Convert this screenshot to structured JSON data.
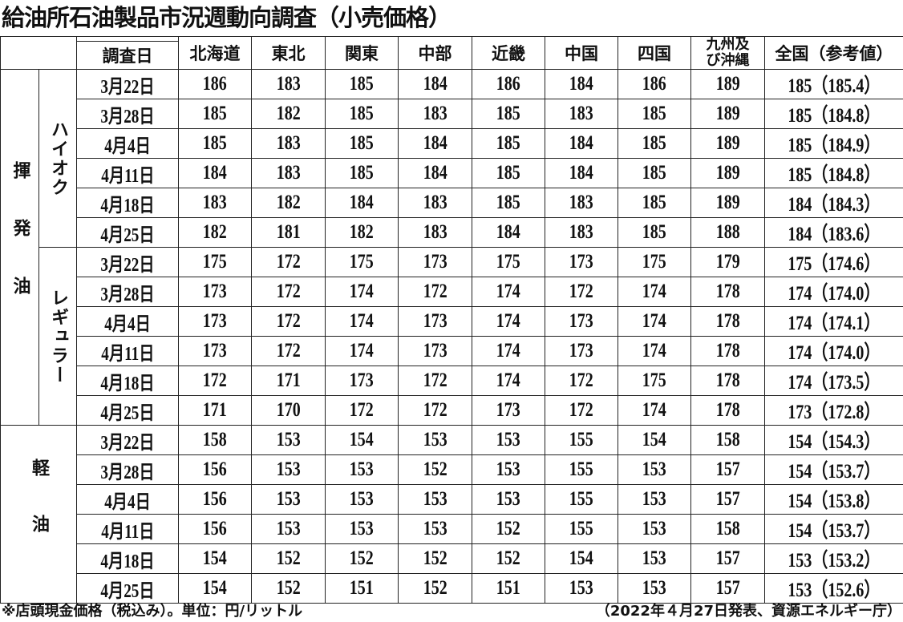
{
  "title": "給油所石油製品市況週動向調査（小売価格）",
  "header": {
    "date_label": "調査日",
    "regions": [
      "北海道",
      "東北",
      "関東",
      "中部",
      "近畿",
      "中国",
      "四国",
      "九州及び沖縄",
      "全国（参考値）"
    ]
  },
  "groups": [
    {
      "label": "揮発油",
      "subgroups": [
        {
          "label": "ハイオク",
          "rows": [
            {
              "date": "3月22日",
              "values": [
                "186",
                "183",
                "185",
                "184",
                "186",
                "184",
                "186",
                "189",
                "185（185.4）"
              ]
            },
            {
              "date": "3月28日",
              "values": [
                "185",
                "182",
                "185",
                "183",
                "185",
                "183",
                "185",
                "189",
                "185（184.8）"
              ]
            },
            {
              "date": "4月4日",
              "values": [
                "185",
                "183",
                "185",
                "184",
                "185",
                "184",
                "185",
                "189",
                "185（184.9）"
              ]
            },
            {
              "date": "4月11日",
              "values": [
                "184",
                "183",
                "185",
                "184",
                "185",
                "184",
                "185",
                "189",
                "185（184.8）"
              ]
            },
            {
              "date": "4月18日",
              "values": [
                "183",
                "182",
                "184",
                "183",
                "185",
                "183",
                "185",
                "189",
                "184（184.3）"
              ]
            },
            {
              "date": "4月25日",
              "values": [
                "182",
                "181",
                "182",
                "183",
                "184",
                "183",
                "185",
                "188",
                "184（183.6）"
              ]
            }
          ]
        },
        {
          "label": "レギュラー",
          "rows": [
            {
              "date": "3月22日",
              "values": [
                "175",
                "172",
                "175",
                "173",
                "175",
                "173",
                "175",
                "179",
                "175（174.6）"
              ]
            },
            {
              "date": "3月28日",
              "values": [
                "173",
                "172",
                "174",
                "172",
                "174",
                "172",
                "174",
                "178",
                "174（174.0）"
              ]
            },
            {
              "date": "4月4日",
              "values": [
                "173",
                "172",
                "174",
                "173",
                "174",
                "173",
                "174",
                "178",
                "174（174.1）"
              ]
            },
            {
              "date": "4月11日",
              "values": [
                "173",
                "172",
                "174",
                "173",
                "174",
                "173",
                "174",
                "178",
                "174（174.0）"
              ]
            },
            {
              "date": "4月18日",
              "values": [
                "172",
                "171",
                "173",
                "172",
                "174",
                "172",
                "175",
                "178",
                "174（173.5）"
              ]
            },
            {
              "date": "4月25日",
              "values": [
                "171",
                "170",
                "172",
                "172",
                "173",
                "172",
                "174",
                "178",
                "173（172.8）"
              ]
            }
          ]
        }
      ]
    },
    {
      "label": "軽油",
      "subgroups": [
        {
          "label": "",
          "rows": [
            {
              "date": "3月22日",
              "values": [
                "158",
                "153",
                "154",
                "153",
                "153",
                "155",
                "154",
                "158",
                "154（154.3）"
              ]
            },
            {
              "date": "3月28日",
              "values": [
                "156",
                "153",
                "153",
                "152",
                "153",
                "155",
                "153",
                "157",
                "154（153.7）"
              ]
            },
            {
              "date": "4月4日",
              "values": [
                "156",
                "153",
                "153",
                "153",
                "153",
                "155",
                "153",
                "157",
                "154（153.8）"
              ]
            },
            {
              "date": "4月11日",
              "values": [
                "156",
                "153",
                "153",
                "153",
                "152",
                "155",
                "153",
                "158",
                "154（153.7）"
              ]
            },
            {
              "date": "4月18日",
              "values": [
                "154",
                "152",
                "152",
                "152",
                "152",
                "154",
                "153",
                "157",
                "153（153.2）"
              ]
            },
            {
              "date": "4月25日",
              "values": [
                "154",
                "152",
                "151",
                "152",
                "151",
                "153",
                "153",
                "157",
                "153（152.6）"
              ]
            }
          ]
        }
      ]
    }
  ],
  "footer": {
    "note": "※店頭現金価格（税込み）。単位：円/リットル",
    "source": "（2022年４月27日発表、資源エネルギー庁）"
  }
}
